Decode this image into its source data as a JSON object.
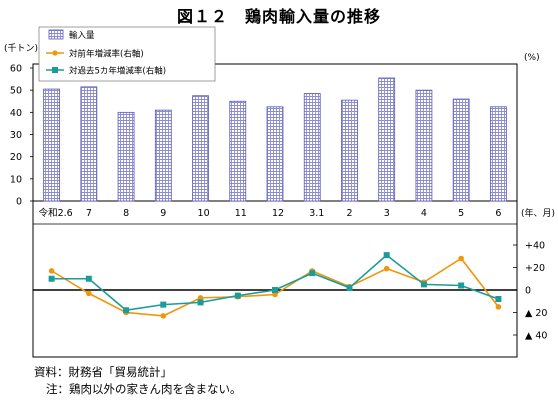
{
  "title": "図１２　鶏肉輸入量の推移",
  "source": "資料：財務省「貿易統計」",
  "note": "注：鶏肉以外の家きん肉を含まない。",
  "chart_data": {
    "type": "bar",
    "categories": [
      "令和2.6",
      "7",
      "8",
      "9",
      "10",
      "11",
      "12",
      "3.1",
      "2",
      "3",
      "4",
      "5",
      "6"
    ],
    "x_unit": "(年、月)",
    "left_unit": "(千トン)",
    "right_unit": "(%)",
    "ylim": [
      0,
      60
    ],
    "yticks": [
      "60",
      "50",
      "40",
      "30",
      "20",
      "10",
      "0"
    ],
    "y2lim": [
      -60,
      60
    ],
    "y2ticks": [
      {
        "v": 40,
        "label": "+40"
      },
      {
        "v": 20,
        "label": "+20"
      },
      {
        "v": 0,
        "label": "0"
      },
      {
        "v": -20,
        "label": "▲ 20"
      },
      {
        "v": -40,
        "label": "▲ 40"
      }
    ],
    "series": [
      {
        "name": "輸入量",
        "type": "bar",
        "axis": "left",
        "color": "#9a9ad8",
        "values": [
          50.5,
          51.5,
          40,
          41,
          47.5,
          45,
          42.5,
          48.5,
          45.5,
          55.5,
          50,
          46,
          42.5
        ]
      },
      {
        "name": "対前年増減率(右軸)",
        "type": "line",
        "axis": "right",
        "color": "#f0960c",
        "marker": "circle",
        "values": [
          17,
          -3,
          -20,
          -23,
          -7,
          -6,
          -4,
          17,
          3,
          19,
          7,
          28,
          -15
        ]
      },
      {
        "name": "対過去5カ年増減率(右軸)",
        "type": "line",
        "axis": "right",
        "color": "#1c9b9b",
        "marker": "square",
        "values": [
          10,
          10,
          -18,
          -13,
          -11,
          -5,
          0,
          15,
          2,
          31,
          5,
          4,
          -8
        ]
      }
    ]
  }
}
